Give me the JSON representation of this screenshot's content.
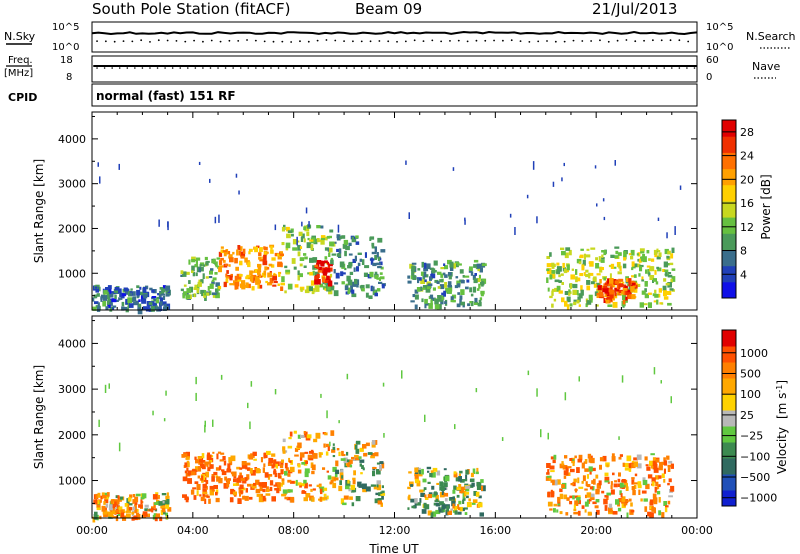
{
  "header": {
    "title": "South Pole Station (fitACF)",
    "beam": "Beam 09",
    "date": "21/Jul/2013"
  },
  "top_panels": {
    "nsky": {
      "label": "N.Sky",
      "y_top": "10^5",
      "y_bottom": "10^0",
      "right_label": "N.Search",
      "right_top": "10^5",
      "right_bottom": "10^0"
    },
    "freq": {
      "label_line1": "Freq.",
      "label_line2": "[MHz]",
      "y_top": "18",
      "y_bottom": "8",
      "right_label": "Nave",
      "right_top": "60",
      "right_bottom": "0"
    },
    "cpid": {
      "label": "CPID",
      "text": "normal (fast) 151 RF"
    }
  },
  "chart_data": [
    {
      "type": "heatmap",
      "panel": "power",
      "xlabel": "Time UT",
      "ylabel": "Slant Range [km]",
      "xlim": [
        0,
        24
      ],
      "ylim": [
        180,
        4600
      ],
      "x_ticks": [
        "00:00",
        "04:00",
        "08:00",
        "12:00",
        "16:00",
        "20:00",
        "00:00"
      ],
      "y_ticks": [
        1000,
        2000,
        3000,
        4000
      ],
      "colorbar": {
        "label": "Power [dB]",
        "ticks": [
          "4",
          "8",
          "12",
          "16",
          "20",
          "24",
          "28"
        ],
        "colors": [
          "#1010e8",
          "#2040b8",
          "#3a6e8c",
          "#4a9a5a",
          "#66c040",
          "#c8d820",
          "#ffd000",
          "#ffa000",
          "#ff7000",
          "#f03000",
          "#e00000"
        ]
      },
      "regions": [
        {
          "t0": 0.0,
          "t1": 3.0,
          "r0": 200,
          "r1": 750,
          "level": 6
        },
        {
          "t0": 3.5,
          "t1": 5.0,
          "r0": 500,
          "r1": 1400,
          "level": 10
        },
        {
          "t0": 5.0,
          "t1": 7.5,
          "r0": 700,
          "r1": 1650,
          "level": 22
        },
        {
          "t0": 7.5,
          "t1": 9.5,
          "r0": 600,
          "r1": 2100,
          "level": 12
        },
        {
          "t0": 8.8,
          "t1": 9.4,
          "r0": 800,
          "r1": 1300,
          "level": 28
        },
        {
          "t0": 9.5,
          "t1": 11.5,
          "r0": 500,
          "r1": 1900,
          "level": 8
        },
        {
          "t0": 12.5,
          "t1": 15.5,
          "r0": 300,
          "r1": 1300,
          "level": 9
        },
        {
          "t0": 18.0,
          "t1": 23.0,
          "r0": 300,
          "r1": 1600,
          "level": 14
        },
        {
          "t0": 20.0,
          "t1": 21.5,
          "r0": 400,
          "r1": 900,
          "level": 26
        }
      ]
    },
    {
      "type": "heatmap",
      "panel": "velocity",
      "xlabel": "Time UT",
      "ylabel": "Slant Range [km]",
      "xlim": [
        0,
        24
      ],
      "ylim": [
        180,
        4600
      ],
      "x_ticks": [
        "00:00",
        "04:00",
        "08:00",
        "12:00",
        "16:00",
        "20:00",
        "00:00"
      ],
      "y_ticks": [
        1000,
        2000,
        3000,
        4000
      ],
      "colorbar": {
        "label_main": "Velocity",
        "label_unit": "[m s",
        "label_exp": "-1",
        "label_close": "]",
        "ticks": [
          "1000",
          "500",
          "100",
          "25",
          "−25",
          "−100",
          "−500",
          "−1000"
        ],
        "colors": [
          "#1020d0",
          "#2050b8",
          "#306a60",
          "#3c8a50",
          "#60c840",
          "#b8b8b8",
          "#ffd200",
          "#ffa800",
          "#ff8000",
          "#ff5000",
          "#e00000"
        ]
      },
      "regions": [
        {
          "t0": 0.0,
          "t1": 3.0,
          "r0": 200,
          "r1": 750,
          "velocity": -100
        },
        {
          "t0": 3.5,
          "t1": 7.5,
          "r0": 600,
          "r1": 1650,
          "velocity": -250
        },
        {
          "t0": 7.5,
          "t1": 9.5,
          "r0": 600,
          "r1": 2100,
          "velocity": -150
        },
        {
          "t0": 9.5,
          "t1": 11.5,
          "r0": 500,
          "r1": 1900,
          "velocity": 50
        },
        {
          "t0": 12.5,
          "t1": 15.5,
          "r0": 300,
          "r1": 1300,
          "velocity": 100
        },
        {
          "t0": 18.0,
          "t1": 23.0,
          "r0": 300,
          "r1": 1600,
          "velocity": -150
        }
      ]
    }
  ]
}
